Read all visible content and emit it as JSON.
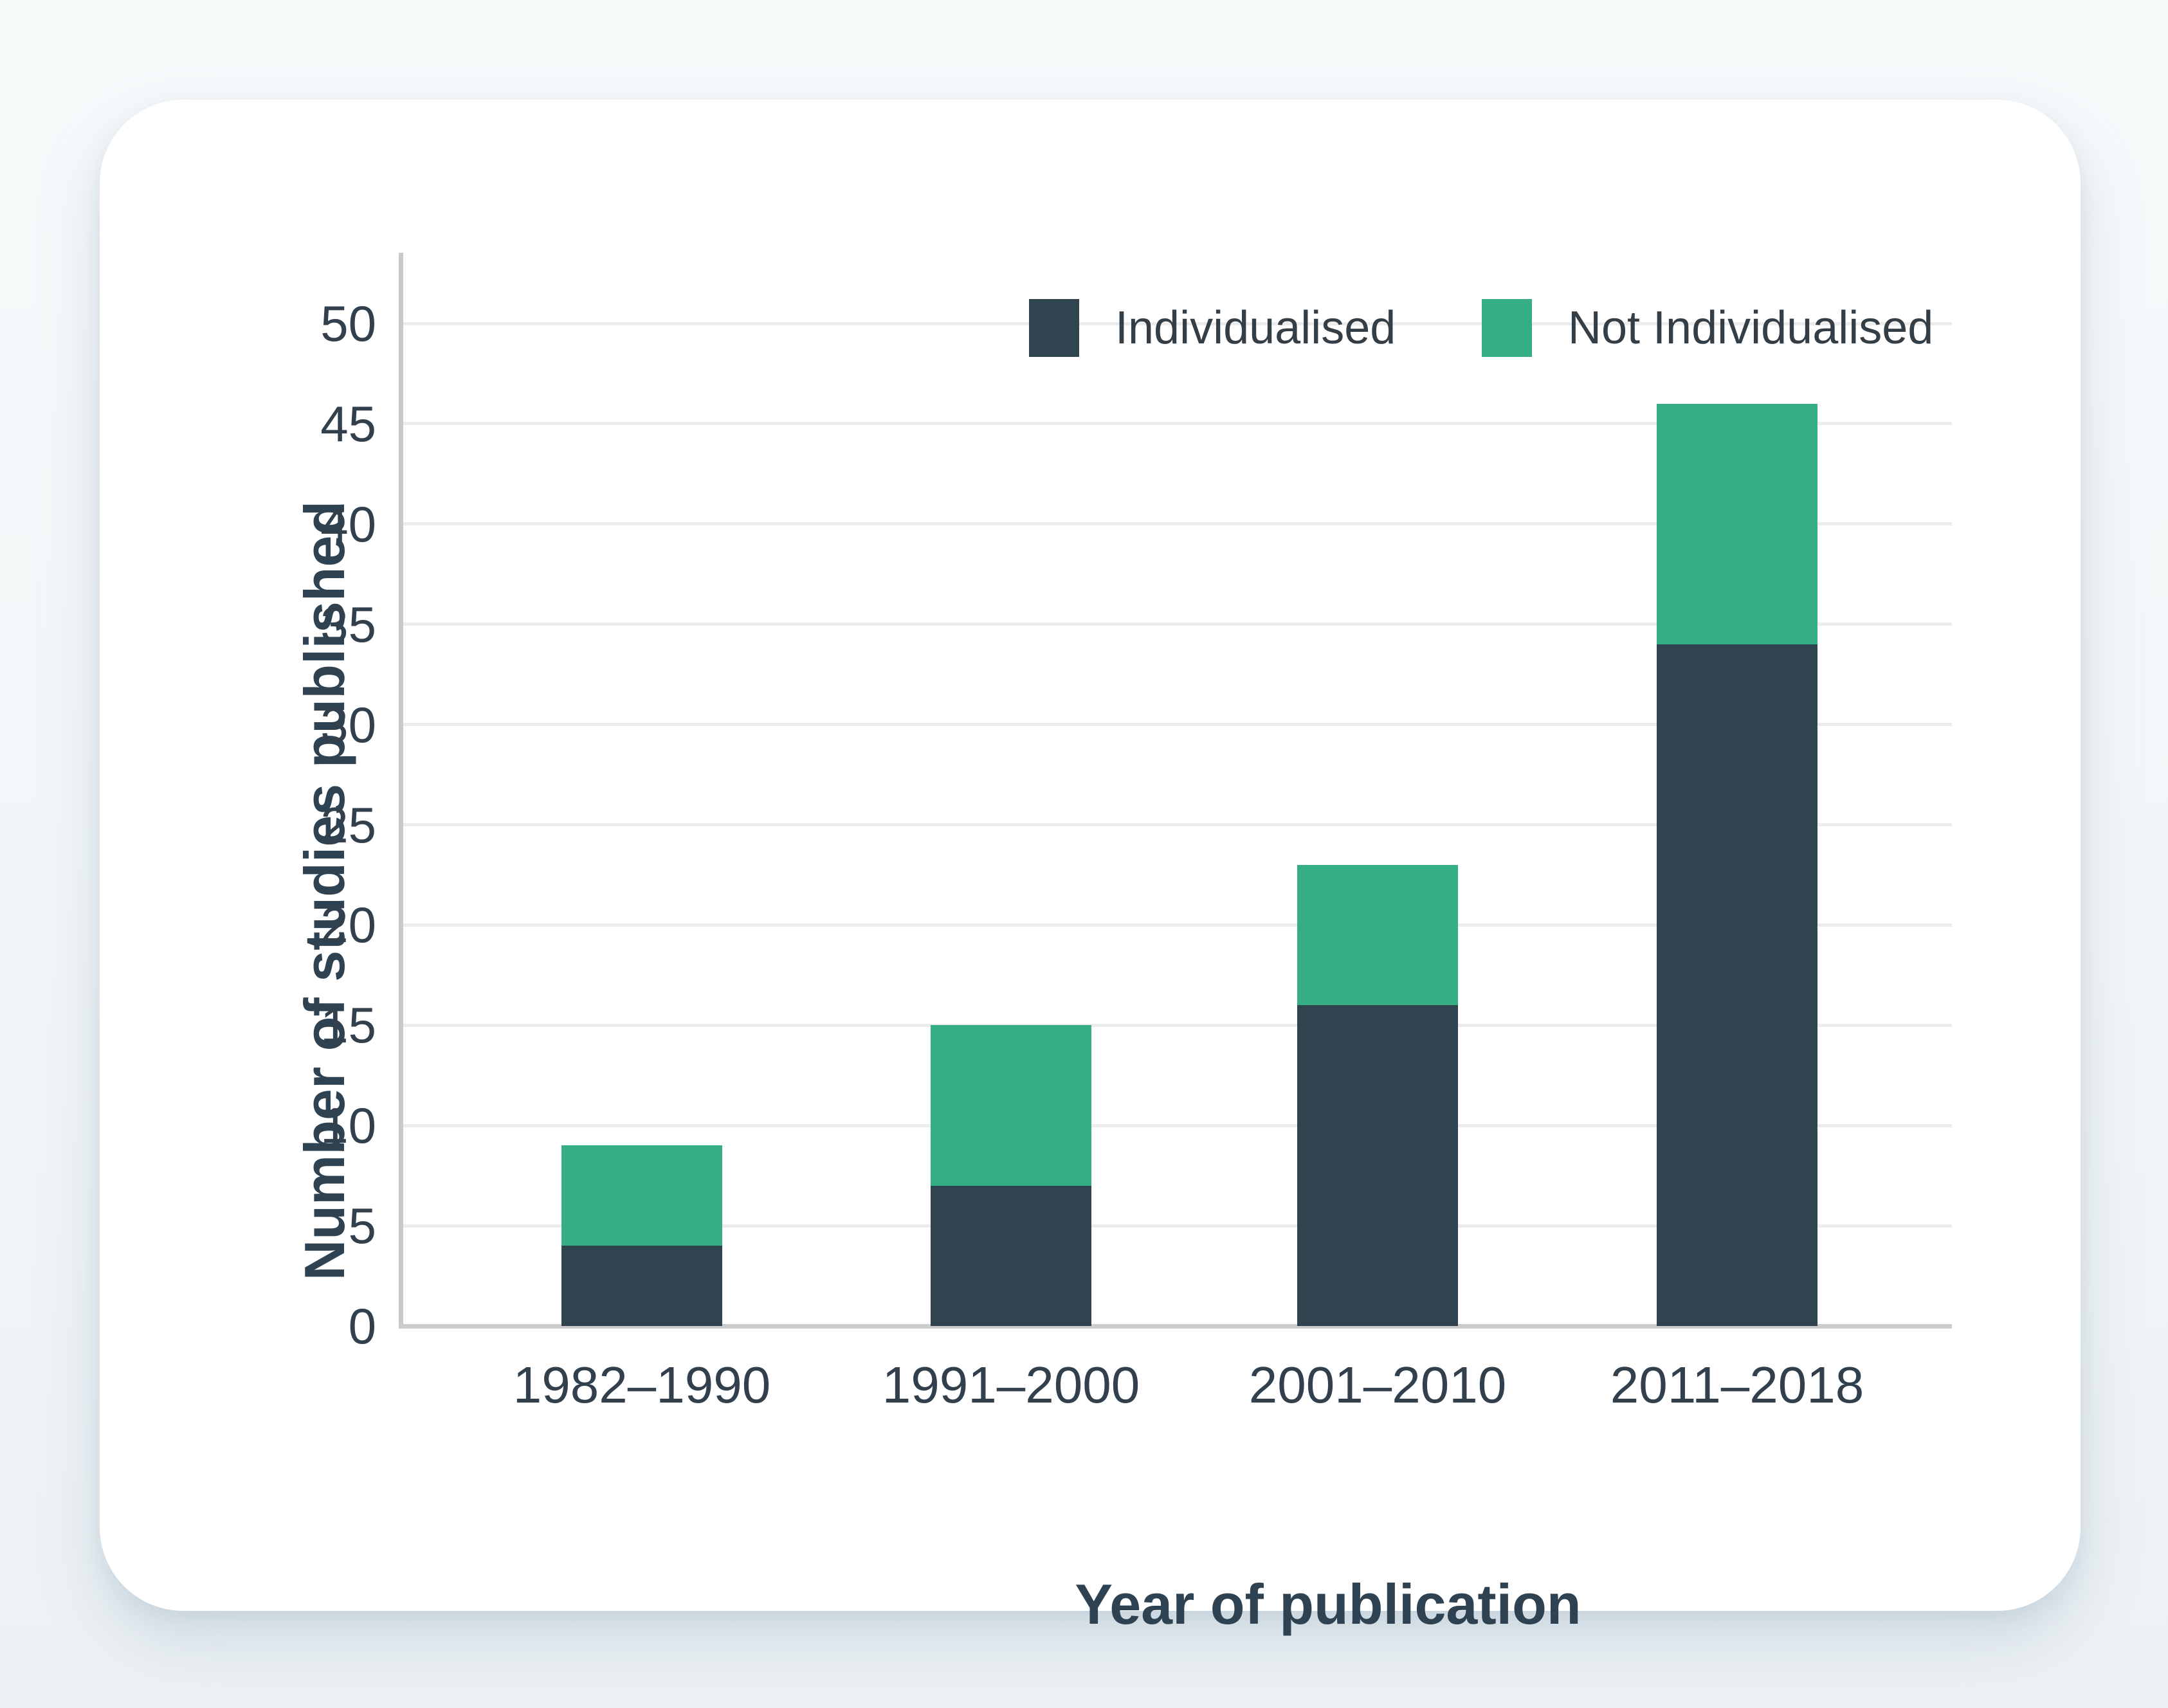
{
  "page": {
    "background_top": "#f7fafb",
    "background_bottom": "#ecf1f4",
    "card_background": "#ffffff"
  },
  "legend": {
    "items": [
      {
        "label": "Individualised",
        "color": "#304450"
      },
      {
        "label": "Not Individualised",
        "color": "#34ae82"
      }
    ]
  },
  "chart_data": {
    "type": "bar",
    "stacked": true,
    "title": "",
    "xlabel": "Year of publication",
    "ylabel": "Number of studies published",
    "categories": [
      "1982–1990",
      "1991–2000",
      "2001–2010",
      "2011–2018"
    ],
    "series": [
      {
        "name": "Individualised",
        "color": "#304450",
        "values": [
          4,
          7,
          16,
          34
        ]
      },
      {
        "name": "Not Individualised",
        "color": "#34ae82",
        "values": [
          5,
          8,
          7,
          12
        ]
      }
    ],
    "totals": [
      9,
      15,
      23,
      46
    ],
    "ylim": [
      0,
      50
    ],
    "ytick_step": 5,
    "yticks": [
      0,
      5,
      10,
      15,
      20,
      25,
      30,
      35,
      40,
      45,
      50
    ],
    "grid": "horizontal",
    "gridline_color": "#ececec",
    "axis_line_color": "#c7c9cb",
    "tick_label_color": "#31404c",
    "axis_title_color": "#2e4252",
    "legend_position": "top-right"
  }
}
